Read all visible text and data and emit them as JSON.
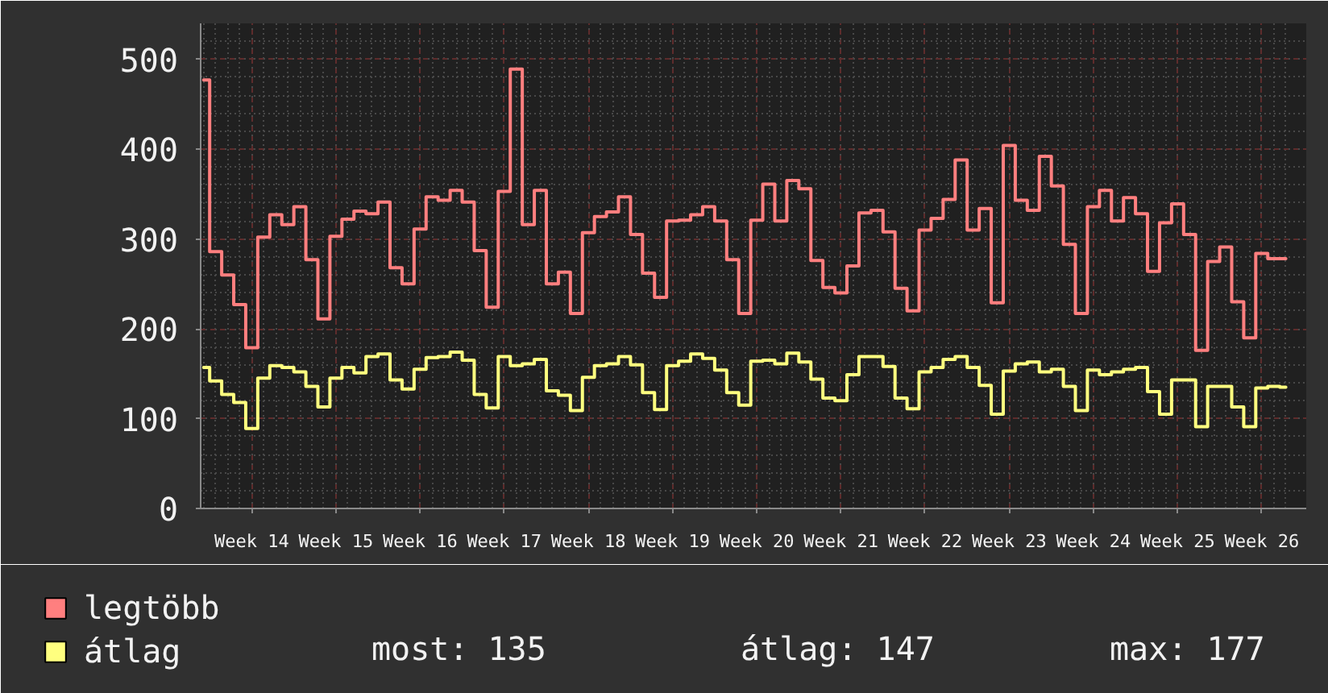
{
  "chart_data": {
    "type": "step",
    "categories": [
      null,
      null,
      null,
      null,
      "Week 14",
      null,
      null,
      null,
      null,
      null,
      null,
      "Week 15",
      null,
      null,
      null,
      null,
      null,
      null,
      "Week 16",
      null,
      null,
      null,
      null,
      null,
      null,
      "Week 17",
      null,
      null,
      null,
      null,
      null,
      null,
      "Week 18",
      null,
      null,
      null,
      null,
      null,
      null,
      "Week 19",
      null,
      null,
      null,
      null,
      null,
      null,
      "Week 20",
      null,
      null,
      null,
      null,
      null,
      null,
      "Week 21",
      null,
      null,
      null,
      null,
      null,
      null,
      "Week 22",
      null,
      null,
      null,
      null,
      null,
      null,
      "Week 23",
      null,
      null,
      null,
      null,
      null,
      null,
      "Week 24",
      null,
      null,
      null,
      null,
      null,
      null,
      "Week 25",
      null,
      null,
      null,
      null,
      null,
      null,
      "Week 26",
      null,
      null
    ],
    "series": [
      {
        "name": "legtöbb",
        "color": "#ff7f7f",
        "values": [
          477,
          286,
          260,
          227,
          179,
          302,
          327,
          316,
          336,
          277,
          211,
          303,
          322,
          331,
          328,
          341,
          268,
          250,
          311,
          347,
          343,
          354,
          341,
          287,
          224,
          353,
          489,
          316,
          354,
          250,
          263,
          217,
          307,
          325,
          330,
          347,
          305,
          262,
          235,
          320,
          321,
          327,
          336,
          320,
          277,
          217,
          321,
          361,
          320,
          365,
          356,
          276,
          246,
          240,
          270,
          329,
          332,
          308,
          245,
          220,
          310,
          323,
          344,
          388,
          310,
          334,
          229,
          404,
          343,
          332,
          392,
          359,
          294,
          217,
          336,
          354,
          320,
          346,
          328,
          264,
          318,
          339,
          305,
          176,
          275,
          291,
          230,
          190,
          284,
          278,
          278
        ]
      },
      {
        "name": "átlag",
        "color": "#ffff7f",
        "values": [
          157,
          142,
          127,
          118,
          89,
          145,
          159,
          157,
          152,
          136,
          113,
          145,
          157,
          151,
          169,
          172,
          143,
          133,
          155,
          168,
          169,
          174,
          165,
          127,
          112,
          169,
          159,
          161,
          166,
          131,
          126,
          109,
          146,
          159,
          161,
          169,
          160,
          129,
          110,
          159,
          164,
          172,
          167,
          154,
          129,
          115,
          164,
          165,
          161,
          173,
          163,
          144,
          123,
          120,
          149,
          169,
          169,
          158,
          123,
          111,
          152,
          157,
          166,
          169,
          157,
          137,
          105,
          153,
          161,
          163,
          152,
          155,
          136,
          109,
          154,
          149,
          152,
          155,
          157,
          130,
          105,
          143,
          143,
          91,
          136,
          136,
          113,
          91,
          134,
          136,
          135
        ]
      }
    ],
    "ylim": [
      0,
      540
    ],
    "yticks": [
      0,
      100,
      200,
      300,
      400,
      500
    ],
    "grid": true,
    "legend": "bottom left",
    "annotations": [
      "most: 135",
      "átlag: 147",
      "max: 177"
    ]
  }
}
